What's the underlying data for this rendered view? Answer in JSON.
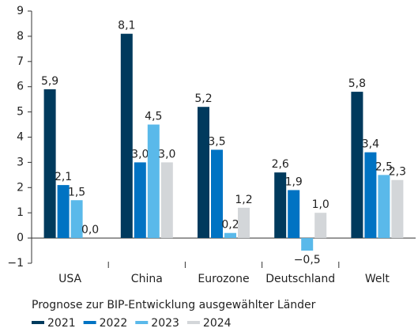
{
  "chart_data": {
    "type": "bar",
    "caption": "Prognose zur BIP-Entwicklung ausgewählter Länder",
    "categories": [
      "USA",
      "China",
      "Eurozone",
      "Deutschland",
      "Welt"
    ],
    "series": [
      {
        "name": "2021",
        "color": "#003a5d",
        "values": [
          5.9,
          8.1,
          5.2,
          2.6,
          5.8
        ],
        "value_labels": [
          "5,9",
          "8,1",
          "5,2",
          "2,6",
          "5,8"
        ]
      },
      {
        "name": "2022",
        "color": "#0073c3",
        "values": [
          2.1,
          3.0,
          3.5,
          1.9,
          3.4
        ],
        "value_labels": [
          "2,1",
          "3,0",
          "3,5",
          "1,9",
          "3,4"
        ]
      },
      {
        "name": "2023",
        "color": "#5ab9ea",
        "values": [
          1.5,
          4.5,
          0.2,
          -0.5,
          2.5
        ],
        "value_labels": [
          "1,5",
          "4,5",
          "0,2",
          "−0,5",
          "2,5"
        ]
      },
      {
        "name": "2024",
        "color": "#d3d6d9",
        "values": [
          0.0,
          3.0,
          1.2,
          1.0,
          2.3
        ],
        "value_labels": [
          "0,0",
          "3,0",
          "1,2",
          "1,0",
          "2,3"
        ]
      }
    ],
    "ylim": [
      -1,
      9
    ],
    "yticks": [
      {
        "value": -1,
        "label": "−1"
      },
      0,
      1,
      2,
      3,
      4,
      5,
      6,
      7,
      8,
      9
    ],
    "grid": false
  }
}
